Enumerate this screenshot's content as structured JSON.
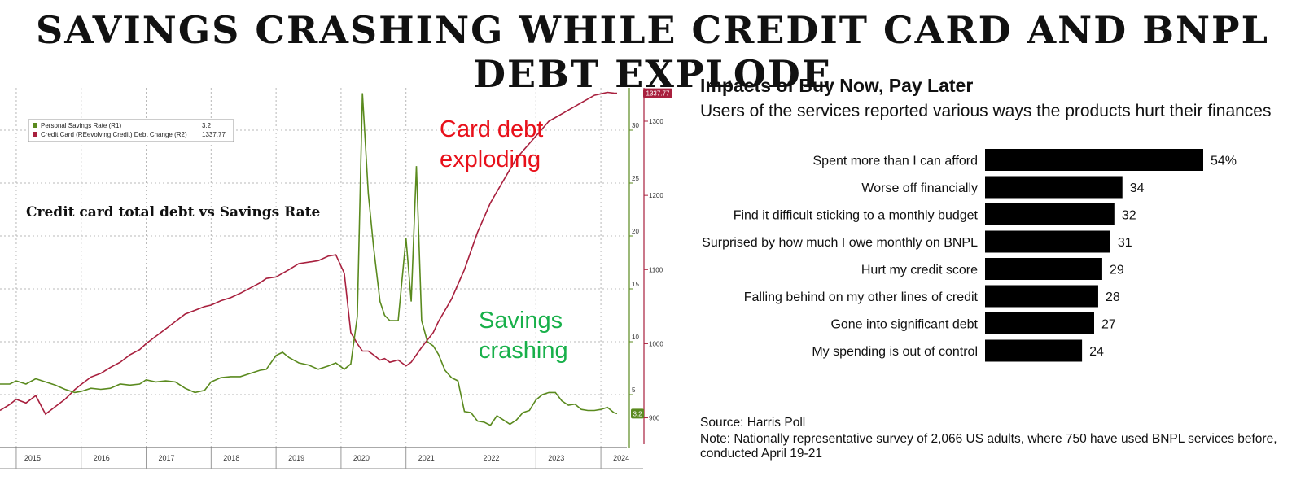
{
  "headline": "Savings Crashing While Credit Card and BNPL Debt Explode",
  "left_chart": {
    "subtitle": "Credit card total debt vs Savings Rate",
    "annotation_debt": [
      "Card debt",
      "exploding"
    ],
    "annotation_savings": [
      "Savings",
      "crashing"
    ],
    "legend": [
      {
        "label": "Personal Savings Rate (R1)",
        "value": "3.2",
        "color": "#5a8a1e"
      },
      {
        "label": "Credit Card (REevolving Credit) Debt Change (R2)",
        "value": "1337.77",
        "color": "#a8203e"
      }
    ],
    "colors": {
      "savings": "#5a8a1e",
      "debt": "#a8203e",
      "debt_annotation": "#e8101a",
      "savings_annotation": "#18b04a"
    },
    "last_value_tags": {
      "savings": "3.2",
      "debt": "1337.77"
    }
  },
  "right_chart": {
    "title": "Impacts of Buy Now, Pay Later",
    "subtitle": "Users of the services reported various ways the products hurt their finances",
    "source": "Source: Harris Poll",
    "note": "Note: Nationally representative survey of 2,066 US adults, where 750 have used BNPL services before, conducted April 19-21",
    "bar_color": "#000000"
  },
  "chart_data": [
    {
      "type": "line",
      "title": "Credit card total debt vs Savings Rate",
      "xlabel": "",
      "x_ticks": [
        "2015",
        "2016",
        "2017",
        "2018",
        "2019",
        "2020",
        "2021",
        "2022",
        "2023",
        "2024"
      ],
      "x_range": [
        2014.75,
        2024.4
      ],
      "y_axes": {
        "R1": {
          "ticks": [
            5,
            10,
            15,
            20,
            25,
            30
          ],
          "range": [
            0,
            34
          ]
        },
        "R2": {
          "ticks": [
            900,
            1000,
            1100,
            1200,
            1300
          ],
          "range": [
            860,
            1345
          ]
        }
      },
      "grid": true,
      "legend_position": "top-left",
      "series": [
        {
          "name": "Personal Savings Rate (R1)",
          "axis": "R1",
          "x": [
            2014.75,
            2014.9,
            2015.0,
            2015.15,
            2015.3,
            2015.45,
            2015.6,
            2015.75,
            2015.9,
            2016.0,
            2016.15,
            2016.3,
            2016.45,
            2016.6,
            2016.75,
            2016.9,
            2017.0,
            2017.15,
            2017.3,
            2017.45,
            2017.6,
            2017.75,
            2017.9,
            2018.0,
            2018.15,
            2018.3,
            2018.45,
            2018.6,
            2018.75,
            2018.85,
            2019.0,
            2019.1,
            2019.2,
            2019.35,
            2019.5,
            2019.65,
            2019.8,
            2019.92,
            2020.05,
            2020.15,
            2020.25,
            2020.33,
            2020.42,
            2020.5,
            2020.6,
            2020.67,
            2020.75,
            2020.88,
            2021.0,
            2021.08,
            2021.16,
            2021.24,
            2021.33,
            2021.42,
            2021.5,
            2021.6,
            2021.7,
            2021.8,
            2021.9,
            2022.0,
            2022.1,
            2022.2,
            2022.3,
            2022.4,
            2022.5,
            2022.6,
            2022.7,
            2022.8,
            2022.9,
            2023.0,
            2023.1,
            2023.2,
            2023.3,
            2023.4,
            2023.5,
            2023.6,
            2023.7,
            2023.8,
            2023.9,
            2024.0,
            2024.1,
            2024.2,
            2024.25
          ],
          "values": [
            6.0,
            6.0,
            6.3,
            6.0,
            6.5,
            6.2,
            5.9,
            5.5,
            5.2,
            5.3,
            5.6,
            5.5,
            5.6,
            6.0,
            5.9,
            6.0,
            6.4,
            6.2,
            6.3,
            6.2,
            5.6,
            5.2,
            5.4,
            6.2,
            6.6,
            6.7,
            6.7,
            7.0,
            7.3,
            7.4,
            8.7,
            9.0,
            8.5,
            8.0,
            7.8,
            7.4,
            7.7,
            8.0,
            7.4,
            7.9,
            12.4,
            33.5,
            24.0,
            19.0,
            13.8,
            12.5,
            12.0,
            12.0,
            19.8,
            13.8,
            26.6,
            12.0,
            10.0,
            9.6,
            8.8,
            7.3,
            6.6,
            6.3,
            3.4,
            3.3,
            2.5,
            2.4,
            2.1,
            3.0,
            2.6,
            2.2,
            2.6,
            3.3,
            3.5,
            4.5,
            5.0,
            5.2,
            5.2,
            4.4,
            4.0,
            4.1,
            3.6,
            3.5,
            3.5,
            3.6,
            3.8,
            3.3,
            3.2
          ]
        },
        {
          "name": "Credit Card (REevolving Credit) Debt Change (R2)",
          "axis": "R2",
          "x": [
            2014.75,
            2014.9,
            2015.0,
            2015.15,
            2015.3,
            2015.45,
            2015.6,
            2015.75,
            2015.9,
            2016.0,
            2016.15,
            2016.3,
            2016.45,
            2016.6,
            2016.75,
            2016.9,
            2017.0,
            2017.15,
            2017.3,
            2017.45,
            2017.6,
            2017.75,
            2017.9,
            2018.0,
            2018.15,
            2018.3,
            2018.45,
            2018.6,
            2018.75,
            2018.85,
            2019.0,
            2019.1,
            2019.2,
            2019.35,
            2019.5,
            2019.65,
            2019.8,
            2019.92,
            2020.05,
            2020.15,
            2020.25,
            2020.33,
            2020.42,
            2020.5,
            2020.6,
            2020.67,
            2020.75,
            2020.88,
            2021.0,
            2021.08,
            2021.16,
            2021.24,
            2021.33,
            2021.42,
            2021.5,
            2021.6,
            2021.7,
            2021.8,
            2021.9,
            2022.0,
            2022.1,
            2022.2,
            2022.3,
            2022.4,
            2022.5,
            2022.6,
            2022.7,
            2022.8,
            2022.9,
            2023.0,
            2023.1,
            2023.2,
            2023.3,
            2023.4,
            2023.5,
            2023.6,
            2023.7,
            2023.8,
            2023.9,
            2024.0,
            2024.1,
            2024.2,
            2024.25
          ],
          "values": [
            910,
            918,
            925,
            920,
            930,
            905,
            915,
            925,
            938,
            945,
            955,
            960,
            968,
            975,
            985,
            992,
            1000,
            1010,
            1020,
            1030,
            1040,
            1045,
            1050,
            1052,
            1058,
            1062,
            1068,
            1075,
            1082,
            1088,
            1090,
            1095,
            1100,
            1108,
            1110,
            1112,
            1118,
            1120,
            1095,
            1015,
            1000,
            990,
            990,
            985,
            978,
            980,
            975,
            978,
            970,
            975,
            985,
            995,
            1005,
            1015,
            1030,
            1045,
            1060,
            1080,
            1100,
            1125,
            1150,
            1170,
            1190,
            1205,
            1220,
            1235,
            1250,
            1260,
            1270,
            1280,
            1290,
            1300,
            1305,
            1310,
            1315,
            1320,
            1325,
            1330,
            1335,
            1337,
            1339,
            1338,
            1337.77
          ]
        }
      ]
    },
    {
      "type": "bar",
      "orientation": "horizontal",
      "title": "Impacts of Buy Now, Pay Later",
      "categories": [
        "Spent more than I can afford",
        "Worse off financially",
        "Find it difficult sticking to a monthly budget",
        "Surprised by how much I owe monthly on BNPL",
        "Hurt my credit score",
        "Falling behind on my other lines of credit",
        "Gone into significant debt",
        "My spending is out of control"
      ],
      "values": [
        54,
        34,
        32,
        31,
        29,
        28,
        27,
        24
      ],
      "value_labels": [
        "54%",
        "34",
        "32",
        "31",
        "29",
        "28",
        "27",
        "24"
      ],
      "unit": "%"
    }
  ]
}
